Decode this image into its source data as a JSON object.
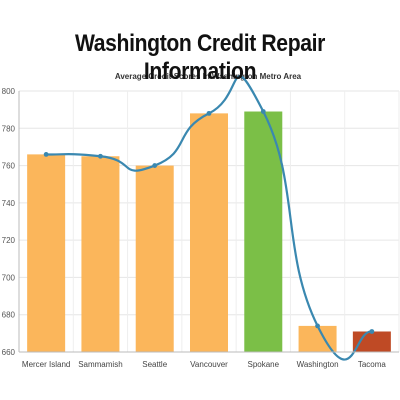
{
  "page": {
    "headline": "Washington Credit Repair Information"
  },
  "chart_data": {
    "type": "bar",
    "title": "Average Credit Scores In Washington Metro Area",
    "xlabel": "",
    "ylabel": "",
    "categories": [
      "Mercer Island",
      "Sammamish",
      "Seattle",
      "Vancouver",
      "Spokane",
      "Washington",
      "Tacoma"
    ],
    "values": [
      766,
      765,
      760,
      788,
      789,
      674,
      671
    ],
    "bar_colors": [
      "#fbb65b",
      "#fbb65b",
      "#fbb65b",
      "#fbb65b",
      "#7bbf47",
      "#fbb65b",
      "#bf4a25"
    ],
    "line_series": {
      "values": [
        766,
        765,
        760,
        788,
        789,
        674,
        671
      ],
      "color": "#3a88b0",
      "smooth": true
    },
    "ylim": [
      660,
      800
    ],
    "yticks": [
      660,
      680,
      700,
      720,
      740,
      760,
      780,
      800
    ],
    "grid": true,
    "legend": "none"
  }
}
